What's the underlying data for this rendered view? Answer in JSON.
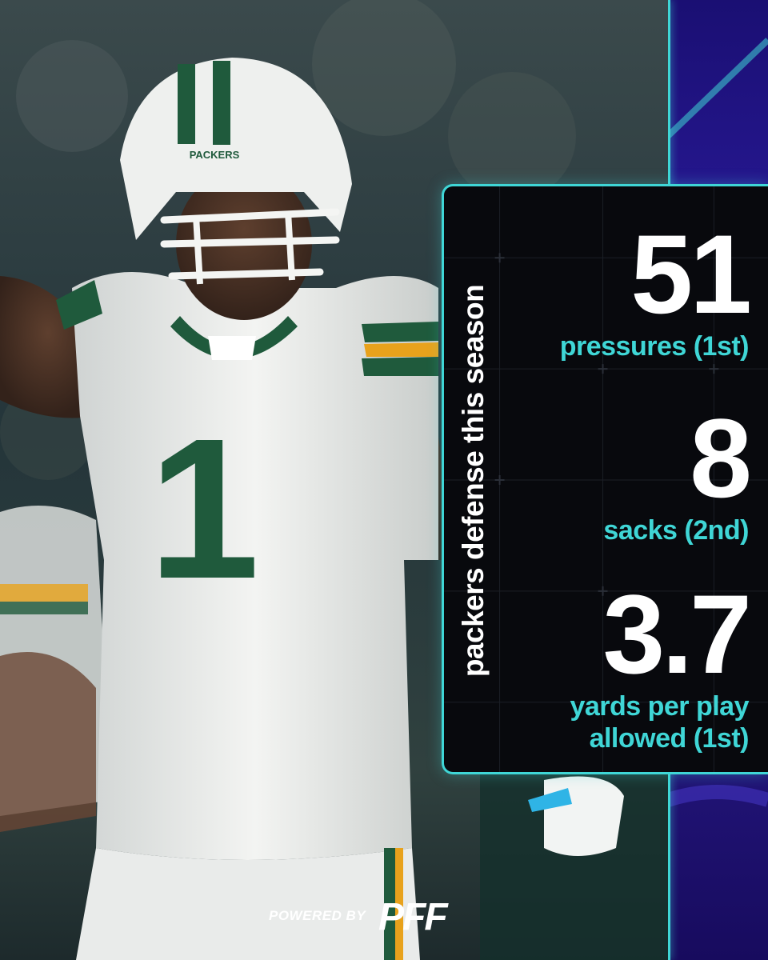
{
  "graphic": {
    "title": "packers defense this season",
    "stats": [
      {
        "value": "51",
        "label_lines": [
          "pressures (1st)"
        ]
      },
      {
        "value": "8",
        "label_lines": [
          "sacks (2nd)"
        ]
      },
      {
        "value": "3.7",
        "label_lines": [
          "yards per play",
          "allowed (1st)"
        ]
      }
    ]
  },
  "photo": {
    "helmet_text": "PACKERS",
    "jersey_number": "1"
  },
  "footer": {
    "powered_by": "POWERED BY",
    "logo_text": "PFF"
  },
  "colors": {
    "accent": "#3fd6d6",
    "panel_bg": "#08090d",
    "stripe": "#2a1a9a",
    "jersey_green": "#1f5a3c",
    "jersey_gold": "#e8a21c"
  }
}
